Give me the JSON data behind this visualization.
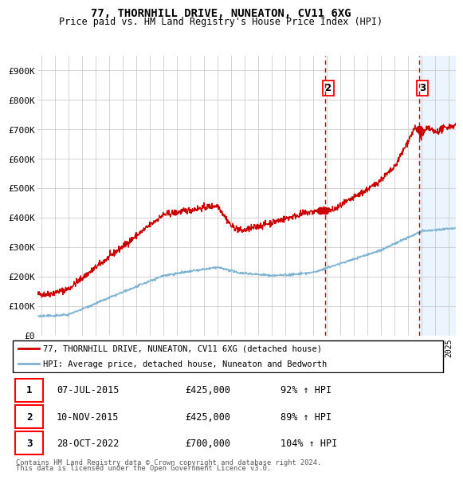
{
  "title": "77, THORNHILL DRIVE, NUNEATON, CV11 6XG",
  "subtitle": "Price paid vs. HM Land Registry's House Price Index (HPI)",
  "legend_line1": "77, THORNHILL DRIVE, NUNEATON, CV11 6XG (detached house)",
  "legend_line2": "HPI: Average price, detached house, Nuneaton and Bedworth",
  "transactions": [
    {
      "num": 1,
      "date": "07-JUL-2015",
      "price": 425000,
      "pct": "92% ↑ HPI"
    },
    {
      "num": 2,
      "date": "10-NOV-2015",
      "price": 425000,
      "pct": "89% ↑ HPI"
    },
    {
      "num": 3,
      "date": "28-OCT-2022",
      "price": 700000,
      "pct": "104% ↑ HPI"
    }
  ],
  "footer_line1": "Contains HM Land Registry data © Crown copyright and database right 2024.",
  "footer_line2": "This data is licensed under the Open Government Licence v3.0.",
  "vline_dates": [
    2015.88,
    2022.83
  ],
  "marker_points_red": [
    [
      2015.54,
      425000
    ],
    [
      2015.88,
      425000
    ],
    [
      2022.83,
      700000
    ]
  ],
  "ylim": [
    0,
    950000
  ],
  "xlim_start": 1994.7,
  "xlim_end": 2025.5,
  "red_color": "#cc0000",
  "blue_color": "#7fb3d3",
  "background_color": "#ffffff",
  "grid_color": "#cccccc",
  "shaded_region_start": 2022.83,
  "shaded_region_color": "#ddeeff",
  "yticks": [
    0,
    100000,
    200000,
    300000,
    400000,
    500000,
    600000,
    700000,
    800000,
    900000
  ],
  "xtick_start": 1995,
  "xtick_end": 2025
}
